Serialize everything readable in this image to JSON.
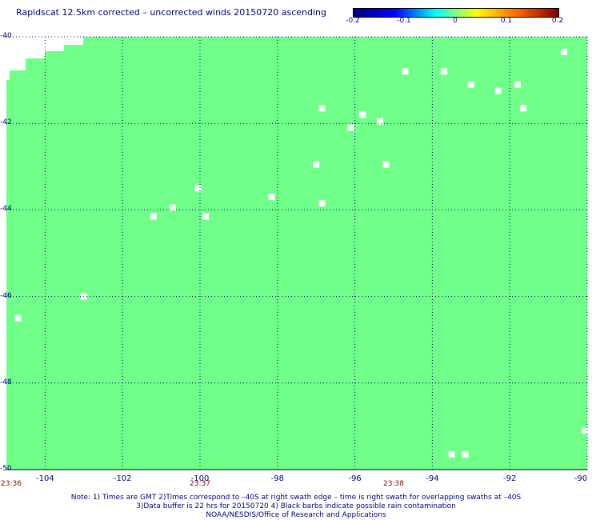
{
  "title": "Rapidscat 12.5km corrected – uncorrected winds 20150720 ascending",
  "colorbar": {
    "ticks": [
      "-0.2",
      "-0.1",
      "0",
      "0.1",
      "0.2"
    ],
    "values": [
      -0.2,
      -0.1,
      0,
      0.1,
      0.2
    ],
    "colors": [
      "#000080",
      "#0000ff",
      "#00ffff",
      "#ffff00",
      "#ff6600",
      "#800000"
    ]
  },
  "map": {
    "lon_range": [
      -105,
      -90
    ],
    "lat_range": [
      -50,
      -40
    ],
    "field_color": "#70ff88",
    "grid_color": "#000080",
    "lat_labels": [
      "-40",
      "-42",
      "-44",
      "-46",
      "-48",
      "-50"
    ],
    "lat_values": [
      -40,
      -42,
      -44,
      -46,
      -48,
      -50
    ],
    "lon_labels": [
      "-104",
      "-102",
      "-100",
      "-98",
      "-96",
      "-94",
      "-92",
      "-90"
    ],
    "lon_values": [
      -104,
      -102,
      -100,
      -98,
      -96,
      -94,
      -92,
      -90
    ],
    "time_labels": [
      {
        "text": "23:36",
        "lon": -105
      },
      {
        "text": "23:37",
        "lon": -100
      },
      {
        "text": "23:38",
        "lon": -95
      }
    ],
    "missing_cells": [
      {
        "lon": -104.7,
        "lat": -46.5
      },
      {
        "lon": -103.0,
        "lat": -46.0
      },
      {
        "lon": -101.2,
        "lat": -44.15
      },
      {
        "lon": -100.7,
        "lat": -43.95
      },
      {
        "lon": -100.05,
        "lat": -43.5
      },
      {
        "lon": -99.85,
        "lat": -44.15
      },
      {
        "lon": -98.15,
        "lat": -43.7
      },
      {
        "lon": -97.0,
        "lat": -42.95
      },
      {
        "lon": -96.85,
        "lat": -41.65
      },
      {
        "lon": -96.85,
        "lat": -43.85
      },
      {
        "lon": -96.1,
        "lat": -42.1
      },
      {
        "lon": -95.8,
        "lat": -41.8
      },
      {
        "lon": -95.35,
        "lat": -41.95
      },
      {
        "lon": -95.2,
        "lat": -42.95
      },
      {
        "lon": -94.7,
        "lat": -40.8
      },
      {
        "lon": -93.7,
        "lat": -40.8
      },
      {
        "lon": -93.0,
        "lat": -41.1
      },
      {
        "lon": -92.3,
        "lat": -41.25
      },
      {
        "lon": -91.8,
        "lat": -41.1
      },
      {
        "lon": -91.65,
        "lat": -41.65
      },
      {
        "lon": -90.6,
        "lat": -40.35
      },
      {
        "lon": -93.5,
        "lat": -49.65
      },
      {
        "lon": -93.15,
        "lat": -49.65
      },
      {
        "lon": -90.05,
        "lat": -49.1
      }
    ]
  },
  "notes": [
    "Note: 1) Times are GMT 2)Times correspond to –40S at right swath edge – time is right swath for overlapping swaths at –40S",
    "3)Data buffer is 22 hrs for 20150720 4) Black barbs indicate possible rain contamination",
    "NOAA/NESDIS/Office of Research and Applications"
  ]
}
